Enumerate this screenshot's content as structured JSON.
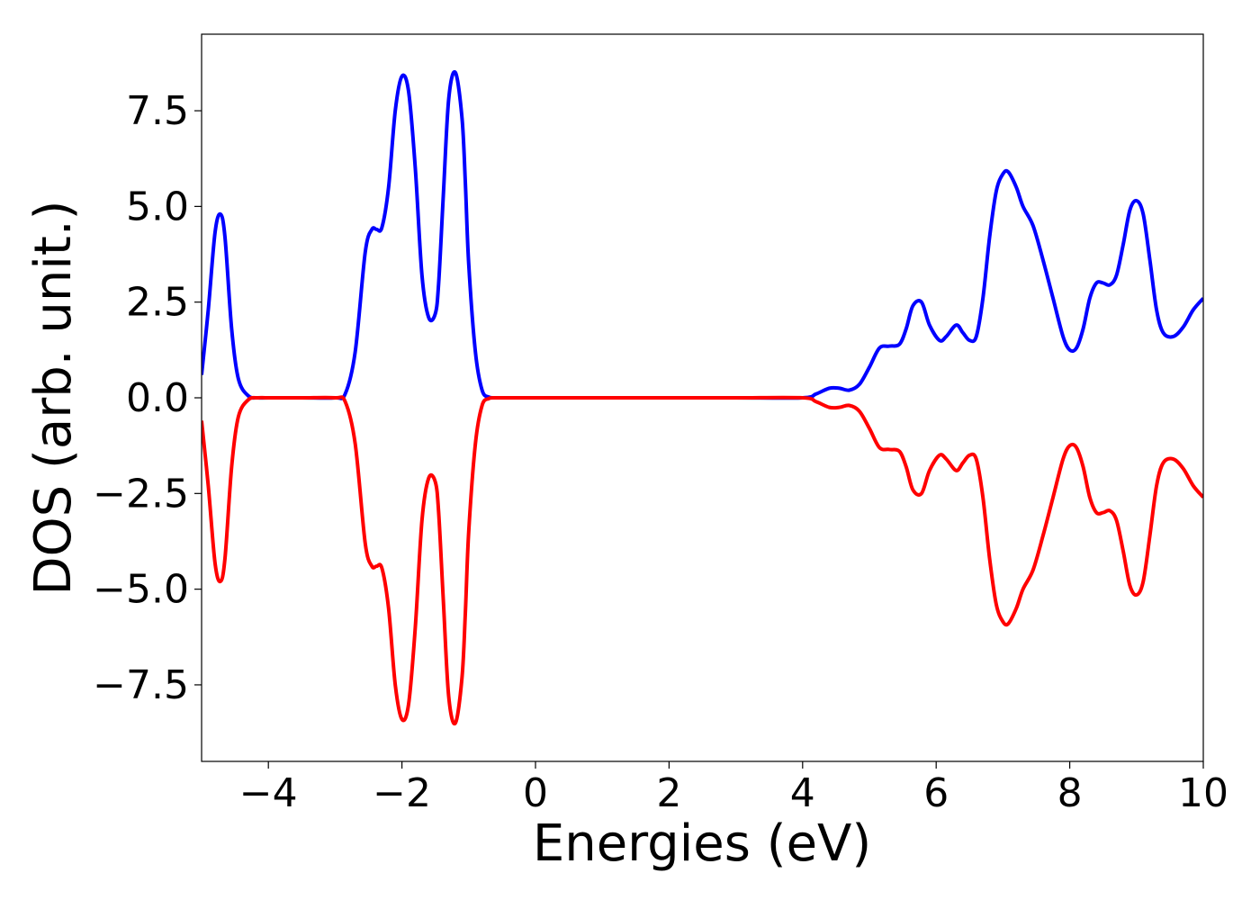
{
  "chart_data": {
    "type": "line",
    "title": "",
    "xlabel": "Energies (eV)",
    "ylabel": "DOS (arb. unit.)",
    "xlim": [
      -5,
      10
    ],
    "ylim": [
      -9.5,
      9.5
    ],
    "xticks": [
      -4,
      -2,
      0,
      2,
      4,
      6,
      8,
      10
    ],
    "xtick_labels": [
      "−4",
      "−2",
      "0",
      "2",
      "4",
      "6",
      "8",
      "10"
    ],
    "yticks": [
      -7.5,
      -5.0,
      -2.5,
      0.0,
      2.5,
      5.0,
      7.5
    ],
    "ytick_labels": [
      "−7.5",
      "−5.0",
      "−2.5",
      "0.0",
      "2.5",
      "5.0",
      "7.5"
    ],
    "grid": false,
    "legend": "none",
    "series": [
      {
        "color": "#0000ff",
        "x": [
          -5.0,
          -4.9,
          -4.8,
          -4.72,
          -4.65,
          -4.55,
          -4.45,
          -4.3,
          -4.15,
          -4.0,
          -3.5,
          -3.0,
          -2.85,
          -2.7,
          -2.55,
          -2.45,
          -2.38,
          -2.3,
          -2.2,
          -2.1,
          -2.0,
          -1.9,
          -1.8,
          -1.7,
          -1.6,
          -1.5,
          -1.45,
          -1.38,
          -1.3,
          -1.2,
          -1.1,
          -1.05,
          -1.0,
          -0.9,
          -0.8,
          -0.7,
          -0.6,
          -0.5,
          -0.4,
          0.0,
          1.0,
          2.0,
          3.0,
          4.0,
          4.2,
          4.4,
          4.55,
          4.7,
          4.85,
          5.0,
          5.15,
          5.3,
          5.45,
          5.55,
          5.65,
          5.78,
          5.9,
          6.05,
          6.15,
          6.3,
          6.4,
          6.5,
          6.6,
          6.7,
          6.8,
          6.9,
          7.0,
          7.08,
          7.2,
          7.3,
          7.45,
          7.6,
          7.75,
          7.9,
          8.0,
          8.1,
          8.2,
          8.3,
          8.4,
          8.5,
          8.6,
          8.7,
          8.8,
          8.9,
          9.0,
          9.1,
          9.2,
          9.3,
          9.4,
          9.55,
          9.7,
          9.85,
          10.0
        ],
        "y": [
          0.6,
          2.3,
          4.3,
          4.8,
          4.2,
          1.8,
          0.5,
          0.05,
          0.0,
          0.0,
          0.0,
          0.0,
          0.1,
          1.2,
          3.8,
          4.4,
          4.4,
          4.45,
          5.5,
          7.5,
          8.4,
          8.0,
          6.0,
          3.2,
          2.1,
          2.2,
          3.0,
          5.3,
          7.8,
          8.5,
          7.3,
          5.6,
          3.5,
          1.2,
          0.2,
          0.02,
          0.0,
          0.0,
          0.0,
          0.0,
          0.0,
          0.0,
          0.0,
          0.0,
          0.1,
          0.25,
          0.25,
          0.2,
          0.35,
          0.8,
          1.3,
          1.35,
          1.4,
          1.8,
          2.4,
          2.5,
          1.9,
          1.5,
          1.6,
          1.9,
          1.7,
          1.5,
          1.6,
          2.6,
          4.2,
          5.4,
          5.85,
          5.9,
          5.5,
          5.0,
          4.5,
          3.6,
          2.6,
          1.6,
          1.25,
          1.3,
          1.8,
          2.6,
          3.0,
          3.0,
          2.95,
          3.2,
          4.0,
          4.9,
          5.15,
          4.8,
          3.6,
          2.3,
          1.7,
          1.6,
          1.85,
          2.3,
          2.6
        ]
      },
      {
        "color": "#ff0000",
        "x": [
          -5.0,
          -4.9,
          -4.8,
          -4.72,
          -4.65,
          -4.55,
          -4.45,
          -4.3,
          -4.15,
          -4.0,
          -3.5,
          -3.0,
          -2.85,
          -2.7,
          -2.55,
          -2.45,
          -2.38,
          -2.3,
          -2.2,
          -2.1,
          -2.0,
          -1.9,
          -1.8,
          -1.7,
          -1.6,
          -1.5,
          -1.45,
          -1.38,
          -1.3,
          -1.2,
          -1.1,
          -1.05,
          -1.0,
          -0.9,
          -0.8,
          -0.7,
          -0.6,
          -0.5,
          -0.4,
          0.0,
          1.0,
          2.0,
          3.0,
          4.0,
          4.2,
          4.4,
          4.55,
          4.7,
          4.85,
          5.0,
          5.15,
          5.3,
          5.45,
          5.55,
          5.65,
          5.78,
          5.9,
          6.05,
          6.15,
          6.3,
          6.4,
          6.5,
          6.6,
          6.7,
          6.8,
          6.9,
          7.0,
          7.08,
          7.2,
          7.3,
          7.45,
          7.6,
          7.75,
          7.9,
          8.0,
          8.1,
          8.2,
          8.3,
          8.4,
          8.5,
          8.6,
          8.7,
          8.8,
          8.9,
          9.0,
          9.1,
          9.2,
          9.3,
          9.4,
          9.55,
          9.7,
          9.85,
          10.0
        ],
        "y": [
          -0.6,
          -2.3,
          -4.3,
          -4.8,
          -4.2,
          -1.8,
          -0.5,
          -0.05,
          0.0,
          0.0,
          0.0,
          0.0,
          -0.1,
          -1.2,
          -3.8,
          -4.4,
          -4.4,
          -4.45,
          -5.5,
          -7.5,
          -8.4,
          -8.0,
          -6.0,
          -3.2,
          -2.1,
          -2.2,
          -3.0,
          -5.3,
          -7.8,
          -8.5,
          -7.3,
          -5.6,
          -3.5,
          -1.2,
          -0.2,
          -0.02,
          0.0,
          0.0,
          0.0,
          0.0,
          0.0,
          0.0,
          0.0,
          0.0,
          -0.1,
          -0.25,
          -0.25,
          -0.2,
          -0.35,
          -0.8,
          -1.3,
          -1.35,
          -1.4,
          -1.8,
          -2.4,
          -2.5,
          -1.9,
          -1.5,
          -1.6,
          -1.9,
          -1.7,
          -1.5,
          -1.6,
          -2.6,
          -4.2,
          -5.4,
          -5.85,
          -5.9,
          -5.5,
          -5.0,
          -4.5,
          -3.6,
          -2.6,
          -1.6,
          -1.25,
          -1.3,
          -1.8,
          -2.6,
          -3.0,
          -3.0,
          -2.95,
          -3.2,
          -4.0,
          -4.9,
          -5.15,
          -4.8,
          -3.6,
          -2.3,
          -1.7,
          -1.6,
          -1.85,
          -2.3,
          -2.6
        ]
      }
    ]
  }
}
